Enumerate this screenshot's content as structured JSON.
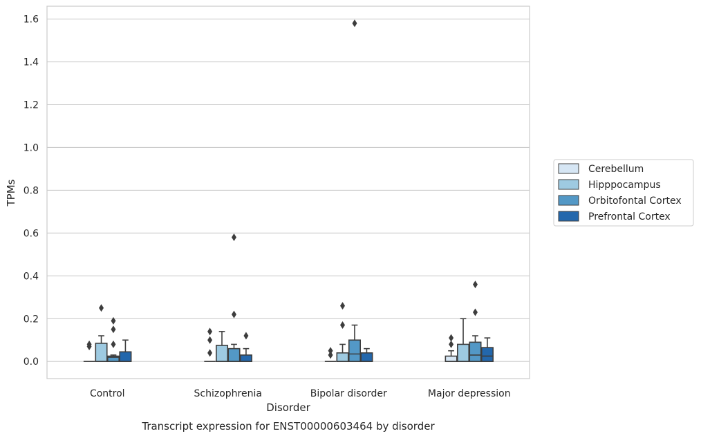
{
  "chart_data": {
    "type": "box",
    "title": "Transcript expression for ENST00000603464 by disorder",
    "xlabel": "Disorder",
    "ylabel": "TPMs",
    "ylim": [
      -0.08,
      1.66
    ],
    "yticks": [
      0.0,
      0.2,
      0.4,
      0.6,
      0.8,
      1.0,
      1.2,
      1.4,
      1.6
    ],
    "ytick_labels": [
      "0.0",
      "0.2",
      "0.4",
      "0.6",
      "0.8",
      "1.0",
      "1.2",
      "1.4",
      "1.6"
    ],
    "grid": "horizontal",
    "legend_position": "right",
    "categories": [
      "Control",
      "Schizophrenia",
      "Bipolar disorder",
      "Major depression"
    ],
    "series": [
      {
        "name": "Cerebellum",
        "color": "#d6e6f4",
        "boxes": [
          {
            "q1": 0.0,
            "median": 0.0,
            "q3": 0.0,
            "whisker_low": 0.0,
            "whisker_high": 0.0,
            "outliers": [
              0.07,
              0.08
            ]
          },
          {
            "q1": 0.0,
            "median": 0.0,
            "q3": 0.0,
            "whisker_low": 0.0,
            "whisker_high": 0.0,
            "outliers": [
              0.04,
              0.1,
              0.14
            ]
          },
          {
            "q1": 0.0,
            "median": 0.0,
            "q3": 0.0,
            "whisker_low": 0.0,
            "whisker_high": 0.0,
            "outliers": [
              0.03,
              0.05
            ]
          },
          {
            "q1": 0.0,
            "median": 0.0,
            "q3": 0.025,
            "whisker_low": 0.0,
            "whisker_high": 0.05,
            "outliers": [
              0.08,
              0.11
            ]
          }
        ]
      },
      {
        "name": "Hipppocampus",
        "color": "#9ecae1",
        "boxes": [
          {
            "q1": 0.0,
            "median": 0.0,
            "q3": 0.085,
            "whisker_low": 0.0,
            "whisker_high": 0.12,
            "outliers": [
              0.25
            ]
          },
          {
            "q1": 0.0,
            "median": 0.0,
            "q3": 0.075,
            "whisker_low": 0.0,
            "whisker_high": 0.14,
            "outliers": []
          },
          {
            "q1": 0.0,
            "median": 0.0,
            "q3": 0.04,
            "whisker_low": 0.0,
            "whisker_high": 0.08,
            "outliers": [
              0.17,
              0.26
            ]
          },
          {
            "q1": 0.0,
            "median": 0.0,
            "q3": 0.08,
            "whisker_low": 0.0,
            "whisker_high": 0.2,
            "outliers": []
          }
        ]
      },
      {
        "name": "Orbitofontal Cortex",
        "color": "#5398c6",
        "boxes": [
          {
            "q1": 0.0,
            "median": 0.02,
            "q3": 0.025,
            "whisker_low": 0.0,
            "whisker_high": 0.03,
            "outliers": [
              0.08,
              0.15,
              0.19
            ]
          },
          {
            "q1": 0.0,
            "median": 0.0,
            "q3": 0.06,
            "whisker_low": 0.0,
            "whisker_high": 0.08,
            "outliers": [
              0.22,
              0.58
            ]
          },
          {
            "q1": 0.0,
            "median": 0.035,
            "q3": 0.1,
            "whisker_low": 0.0,
            "whisker_high": 0.17,
            "outliers": [
              1.58
            ]
          },
          {
            "q1": 0.0,
            "median": 0.03,
            "q3": 0.09,
            "whisker_low": 0.0,
            "whisker_high": 0.12,
            "outliers": [
              0.23,
              0.36
            ]
          }
        ]
      },
      {
        "name": "Prefrontal Cortex",
        "color": "#2367ac",
        "boxes": [
          {
            "q1": 0.0,
            "median": 0.0,
            "q3": 0.045,
            "whisker_low": 0.0,
            "whisker_high": 0.1,
            "outliers": []
          },
          {
            "q1": 0.0,
            "median": 0.0,
            "q3": 0.03,
            "whisker_low": 0.0,
            "whisker_high": 0.06,
            "outliers": [
              0.12
            ]
          },
          {
            "q1": 0.0,
            "median": 0.0,
            "q3": 0.04,
            "whisker_low": 0.0,
            "whisker_high": 0.06,
            "outliers": []
          },
          {
            "q1": 0.0,
            "median": 0.025,
            "q3": 0.065,
            "whisker_low": 0.0,
            "whisker_high": 0.11,
            "outliers": []
          }
        ]
      }
    ]
  }
}
